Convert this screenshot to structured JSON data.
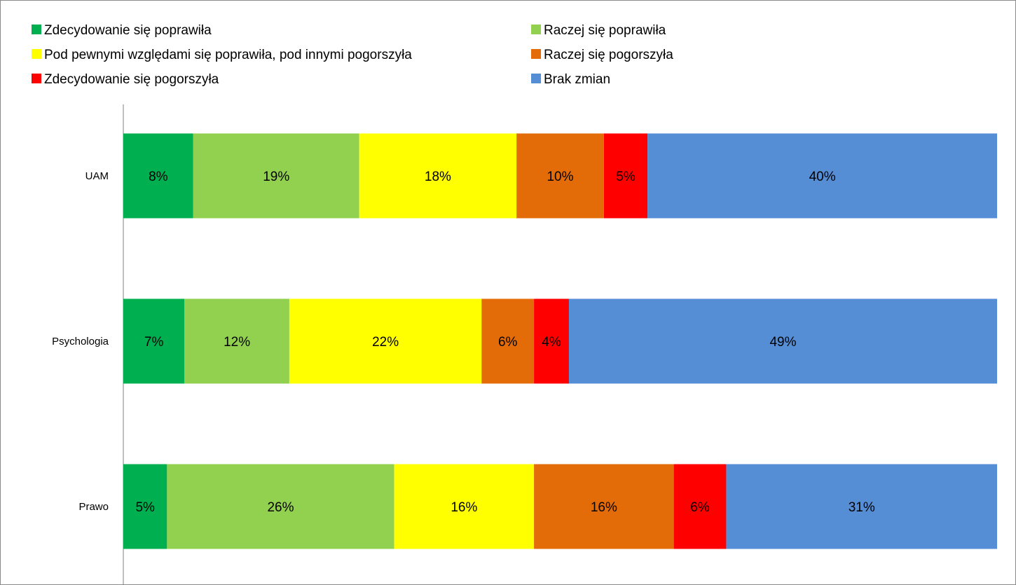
{
  "chart_data": {
    "type": "bar",
    "orientation": "horizontal",
    "stacked": true,
    "percent_stacked": true,
    "categories": [
      "UAM",
      "Psychologia",
      "Prawo"
    ],
    "series": [
      {
        "name": "Zdecydowanie się poprawiła",
        "color": "#00B050",
        "values": [
          8,
          7,
          5
        ],
        "labels": [
          "8%",
          "7%",
          "5%"
        ]
      },
      {
        "name": "Raczej się poprawiła",
        "color": "#92D050",
        "values": [
          19,
          12,
          26
        ],
        "labels": [
          "19%",
          "12%",
          "26%"
        ]
      },
      {
        "name": "Pod pewnymi względami się poprawiła, pod innymi pogorszyła",
        "color": "#FFFF00",
        "values": [
          18,
          22,
          16
        ],
        "labels": [
          "18%",
          "22%",
          "16%"
        ]
      },
      {
        "name": "Raczej się pogorszyła",
        "color": "#E36C09",
        "values": [
          10,
          6,
          16
        ],
        "labels": [
          "10%",
          "6%",
          "16%"
        ]
      },
      {
        "name": "Zdecydowanie się pogorszyła",
        "color": "#FF0000",
        "values": [
          5,
          4,
          6
        ],
        "labels": [
          "5%",
          "4%",
          "6%"
        ]
      },
      {
        "name": "Brak zmian",
        "color": "#558ED5",
        "values": [
          40,
          49,
          31
        ],
        "labels": [
          "40%",
          "49%",
          "31%"
        ]
      }
    ],
    "legend_position": "top",
    "grid": false
  }
}
